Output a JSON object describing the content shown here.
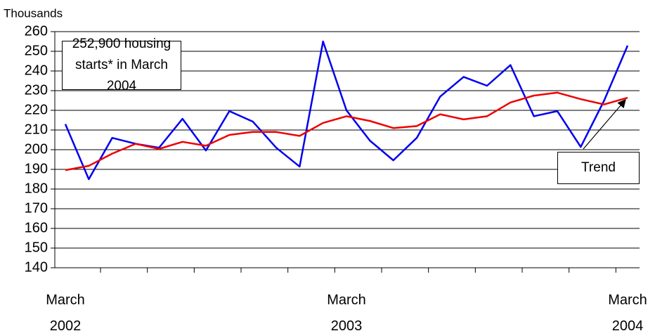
{
  "chart_data": {
    "type": "line",
    "y_axis_label": "Thousands",
    "categories": [
      "March 2002",
      null,
      null,
      null,
      null,
      null,
      null,
      null,
      null,
      null,
      null,
      null,
      "March 2003",
      null,
      null,
      null,
      null,
      null,
      null,
      null,
      null,
      null,
      null,
      null,
      "March 2004"
    ],
    "series": [
      {
        "color": "#0000ee",
        "values": [
          213,
          185,
          206,
          203,
          201,
          215.7,
          199.6,
          219.6,
          214.3,
          201,
          191.4,
          255,
          220,
          204.6,
          194.6,
          206,
          227,
          237,
          232.5,
          243,
          217,
          219.6,
          201.4,
          225,
          252.9
        ]
      },
      {
        "name": "Trend",
        "color": "#ee0000",
        "values": [
          189.6,
          191.8,
          198,
          203,
          200.4,
          204,
          202,
          207.5,
          209,
          209,
          207,
          213.6,
          217,
          214.6,
          211,
          212,
          218,
          215.4,
          217,
          224,
          227.5,
          229,
          225.7,
          223,
          226.4
        ]
      }
    ],
    "annotation": "252,900 housing starts* in March 2004",
    "ylim": [
      140,
      260
    ],
    "yticks": [
      140,
      150,
      160,
      170,
      180,
      190,
      200,
      210,
      220,
      230,
      240,
      250,
      260
    ],
    "grid": true
  }
}
